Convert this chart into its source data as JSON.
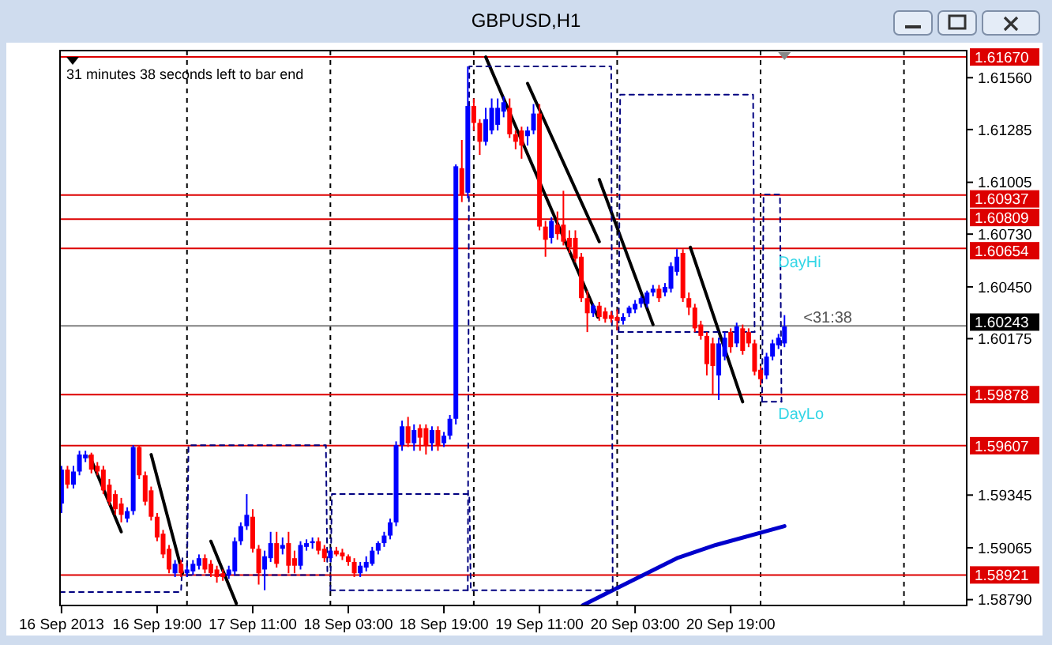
{
  "chart_data": {
    "type": "candlestick",
    "title": "GBPUSD,H1",
    "annotations": [
      "31 minutes 38 seconds left to bar end",
      "DayHi",
      "DayLo",
      "<31:38"
    ],
    "x": [
      "2013-09-16T03:00",
      "2013-09-16T04:00",
      "2013-09-16T05:00",
      "2013-09-16T06:00",
      "2013-09-16T07:00",
      "2013-09-16T08:00",
      "2013-09-16T09:00",
      "2013-09-16T10:00",
      "2013-09-16T11:00",
      "2013-09-16T12:00",
      "2013-09-16T13:00",
      "2013-09-16T14:00",
      "2013-09-16T15:00",
      "2013-09-16T16:00",
      "2013-09-16T17:00",
      "2013-09-16T18:00",
      "2013-09-16T19:00",
      "2013-09-16T20:00",
      "2013-09-16T21:00",
      "2013-09-16T22:00",
      "2013-09-16T23:00",
      "2013-09-17T00:00",
      "2013-09-17T01:00",
      "2013-09-17T02:00",
      "2013-09-17T03:00",
      "2013-09-17T04:00",
      "2013-09-17T05:00",
      "2013-09-17T06:00",
      "2013-09-17T07:00",
      "2013-09-17T08:00",
      "2013-09-17T09:00",
      "2013-09-17T10:00",
      "2013-09-17T11:00",
      "2013-09-17T12:00",
      "2013-09-17T13:00",
      "2013-09-17T14:00",
      "2013-09-17T15:00",
      "2013-09-17T16:00",
      "2013-09-17T17:00",
      "2013-09-17T18:00",
      "2013-09-17T19:00",
      "2013-09-17T20:00",
      "2013-09-17T21:00",
      "2013-09-17T22:00",
      "2013-09-17T23:00",
      "2013-09-18T00:00",
      "2013-09-18T01:00",
      "2013-09-18T02:00",
      "2013-09-18T03:00",
      "2013-09-18T04:00",
      "2013-09-18T05:00",
      "2013-09-18T06:00",
      "2013-09-18T07:00",
      "2013-09-18T08:00",
      "2013-09-18T09:00",
      "2013-09-18T10:00",
      "2013-09-18T11:00",
      "2013-09-18T12:00",
      "2013-09-18T13:00",
      "2013-09-18T14:00",
      "2013-09-18T15:00",
      "2013-09-18T16:00",
      "2013-09-18T17:00",
      "2013-09-18T18:00",
      "2013-09-18T19:00",
      "2013-09-18T20:00",
      "2013-09-18T21:00",
      "2013-09-18T22:00",
      "2013-09-18T23:00",
      "2013-09-19T00:00",
      "2013-09-19T01:00",
      "2013-09-19T02:00",
      "2013-09-19T03:00",
      "2013-09-19T04:00",
      "2013-09-19T05:00",
      "2013-09-19T06:00",
      "2013-09-19T07:00",
      "2013-09-19T08:00",
      "2013-09-19T09:00",
      "2013-09-19T10:00",
      "2013-09-19T11:00",
      "2013-09-19T12:00",
      "2013-09-19T13:00",
      "2013-09-19T14:00",
      "2013-09-19T15:00",
      "2013-09-19T16:00",
      "2013-09-19T17:00",
      "2013-09-19T18:00",
      "2013-09-19T19:00",
      "2013-09-19T20:00",
      "2013-09-19T21:00",
      "2013-09-19T22:00",
      "2013-09-19T23:00",
      "2013-09-20T00:00",
      "2013-09-20T01:00",
      "2013-09-20T02:00",
      "2013-09-20T03:00",
      "2013-09-20T04:00",
      "2013-09-20T05:00",
      "2013-09-20T06:00",
      "2013-09-20T07:00",
      "2013-09-20T08:00",
      "2013-09-20T09:00",
      "2013-09-20T10:00",
      "2013-09-20T11:00",
      "2013-09-20T12:00",
      "2013-09-20T13:00",
      "2013-09-20T14:00",
      "2013-09-20T15:00",
      "2013-09-20T16:00",
      "2013-09-20T17:00",
      "2013-09-20T18:00",
      "2013-09-20T19:00",
      "2013-09-20T20:00",
      "2013-09-20T21:00",
      "2013-09-20T22:00",
      "2013-09-20T23:00",
      "2013-09-21T00:00",
      "2013-09-21T01:00",
      "2013-09-21T02:00",
      "2013-09-21T03:00",
      "2013-09-21T04:00"
    ],
    "ohlc": [
      [
        1.593,
        1.595,
        1.5925,
        1.5948
      ],
      [
        1.5948,
        1.595,
        1.5938,
        1.594
      ],
      [
        1.594,
        1.595,
        1.5938,
        1.5947
      ],
      [
        1.5947,
        1.5958,
        1.5945,
        1.5956
      ],
      [
        1.5954,
        1.5958,
        1.5952,
        1.5956
      ],
      [
        1.5956,
        1.5957,
        1.5946,
        1.5948
      ],
      [
        1.595,
        1.5952,
        1.5945,
        1.5947
      ],
      [
        1.5948,
        1.595,
        1.5935,
        1.5937
      ],
      [
        1.594,
        1.5943,
        1.5929,
        1.5931
      ],
      [
        1.5935,
        1.5937,
        1.5924,
        1.5927
      ],
      [
        1.593,
        1.5933,
        1.592,
        1.5924
      ],
      [
        1.5922,
        1.5928,
        1.592,
        1.5926
      ],
      [
        1.5926,
        1.5961,
        1.5924,
        1.596
      ],
      [
        1.596,
        1.5961,
        1.5943,
        1.5945
      ],
      [
        1.5945,
        1.5947,
        1.5929,
        1.5931
      ],
      [
        1.5937,
        1.5939,
        1.5921,
        1.5923
      ],
      [
        1.5923,
        1.5925,
        1.591,
        1.5912
      ],
      [
        1.5914,
        1.5916,
        1.5901,
        1.5903
      ],
      [
        1.5906,
        1.5908,
        1.5893,
        1.5895
      ],
      [
        1.5893,
        1.59,
        1.5891,
        1.5898
      ],
      [
        1.5898,
        1.59,
        1.5891,
        1.5893
      ],
      [
        1.5893,
        1.5897,
        1.5891,
        1.5895
      ],
      [
        1.5894,
        1.59,
        1.5892,
        1.5898
      ],
      [
        1.5897,
        1.5903,
        1.5895,
        1.5901
      ],
      [
        1.5901,
        1.5903,
        1.5893,
        1.5895
      ],
      [
        1.5898,
        1.59,
        1.5891,
        1.5893
      ],
      [
        1.5895,
        1.5897,
        1.5888,
        1.5891
      ],
      [
        1.5893,
        1.5895,
        1.5889,
        1.5891
      ],
      [
        1.5892,
        1.5897,
        1.589,
        1.5895
      ],
      [
        1.5894,
        1.5912,
        1.5892,
        1.591
      ],
      [
        1.591,
        1.592,
        1.5908,
        1.5918
      ],
      [
        1.5918,
        1.5935,
        1.5916,
        1.5924
      ],
      [
        1.5923,
        1.5927,
        1.5904,
        1.5906
      ],
      [
        1.5906,
        1.5908,
        1.5887,
        1.5893
      ],
      [
        1.5895,
        1.5905,
        1.5884,
        1.5902
      ],
      [
        1.5901,
        1.5915,
        1.5899,
        1.5909
      ],
      [
        1.5909,
        1.5915,
        1.5896,
        1.5898
      ],
      [
        1.5906,
        1.5912,
        1.5903,
        1.5908
      ],
      [
        1.5909,
        1.5915,
        1.5893,
        1.5897
      ],
      [
        1.5901,
        1.5905,
        1.5893,
        1.5897
      ],
      [
        1.5897,
        1.591,
        1.5895,
        1.5908
      ],
      [
        1.5907,
        1.5911,
        1.5905,
        1.5909
      ],
      [
        1.5909,
        1.5912,
        1.5906,
        1.591
      ],
      [
        1.591,
        1.5912,
        1.5903,
        1.5905
      ],
      [
        1.5906,
        1.5908,
        1.5899,
        1.5901
      ],
      [
        1.5901,
        1.5906,
        1.5899,
        1.5905
      ],
      [
        1.5905,
        1.5907,
        1.5902,
        1.5903
      ],
      [
        1.5904,
        1.5906,
        1.59,
        1.5902
      ],
      [
        1.5902,
        1.5903,
        1.5897,
        1.5899
      ],
      [
        1.5899,
        1.5901,
        1.5891,
        1.5893
      ],
      [
        1.5893,
        1.5899,
        1.5891,
        1.5897
      ],
      [
        1.5896,
        1.5902,
        1.5894,
        1.5899
      ],
      [
        1.5898,
        1.5907,
        1.5897,
        1.5905
      ],
      [
        1.5905,
        1.591,
        1.5903,
        1.5909
      ],
      [
        1.5909,
        1.5915,
        1.5907,
        1.5913
      ],
      [
        1.5913,
        1.5922,
        1.5911,
        1.592
      ],
      [
        1.592,
        1.5963,
        1.5918,
        1.5961
      ],
      [
        1.5961,
        1.5974,
        1.5958,
        1.5971
      ],
      [
        1.5971,
        1.5976,
        1.596,
        1.5962
      ],
      [
        1.5962,
        1.5972,
        1.5958,
        1.5969
      ],
      [
        1.597,
        1.5972,
        1.5958,
        1.5965
      ],
      [
        1.597,
        1.5972,
        1.5956,
        1.5961
      ],
      [
        1.5962,
        1.5971,
        1.5958,
        1.5969
      ],
      [
        1.5969,
        1.5971,
        1.5958,
        1.5961
      ],
      [
        1.5962,
        1.5968,
        1.596,
        1.5966
      ],
      [
        1.5966,
        1.5977,
        1.5964,
        1.5975
      ],
      [
        1.5975,
        1.611,
        1.5972,
        1.6109
      ],
      [
        1.6108,
        1.6123,
        1.609,
        1.6094
      ],
      [
        1.6095,
        1.6162,
        1.6092,
        1.6141
      ],
      [
        1.6141,
        1.6145,
        1.6128,
        1.6132
      ],
      [
        1.6132,
        1.6134,
        1.6115,
        1.6122
      ],
      [
        1.6122,
        1.614,
        1.612,
        1.6134
      ],
      [
        1.6128,
        1.6145,
        1.6126,
        1.614
      ],
      [
        1.6131,
        1.6145,
        1.6128,
        1.614
      ],
      [
        1.6138,
        1.6146,
        1.6135,
        1.6143
      ],
      [
        1.614,
        1.6145,
        1.6124,
        1.6126
      ],
      [
        1.6126,
        1.6128,
        1.6118,
        1.6122
      ],
      [
        1.6128,
        1.613,
        1.6113,
        1.612
      ],
      [
        1.6125,
        1.613,
        1.612,
        1.6128
      ],
      [
        1.6128,
        1.6142,
        1.6126,
        1.6137
      ],
      [
        1.6137,
        1.6142,
        1.6075,
        1.6077
      ],
      [
        1.6077,
        1.608,
        1.6061,
        1.607
      ],
      [
        1.6071,
        1.6082,
        1.6068,
        1.608
      ],
      [
        1.6078,
        1.6085,
        1.607,
        1.6073
      ],
      [
        1.6078,
        1.6096,
        1.6067,
        1.6069
      ],
      [
        1.6071,
        1.6075,
        1.6063,
        1.6066
      ],
      [
        1.6071,
        1.6075,
        1.6058,
        1.606
      ],
      [
        1.6061,
        1.6063,
        1.6037,
        1.6039
      ],
      [
        1.6039,
        1.6043,
        1.6021,
        1.6031
      ],
      [
        1.6031,
        1.6036,
        1.6029,
        1.6035
      ],
      [
        1.6035,
        1.6037,
        1.6027,
        1.6029
      ],
      [
        1.6032,
        1.6034,
        1.6026,
        1.6028
      ],
      [
        1.603,
        1.6032,
        1.6026,
        1.6028
      ],
      [
        1.6029,
        1.6033,
        1.6022,
        1.6027
      ],
      [
        1.6027,
        1.6031,
        1.6025,
        1.6029
      ],
      [
        1.6031,
        1.6035,
        1.6029,
        1.6034
      ],
      [
        1.6033,
        1.6038,
        1.6031,
        1.6036
      ],
      [
        1.6036,
        1.604,
        1.6034,
        1.6039
      ],
      [
        1.6036,
        1.6043,
        1.6034,
        1.6042
      ],
      [
        1.6042,
        1.6046,
        1.604,
        1.6044
      ],
      [
        1.6044,
        1.6046,
        1.6037,
        1.6039
      ],
      [
        1.6042,
        1.6047,
        1.604,
        1.6045
      ],
      [
        1.6044,
        1.6058,
        1.6042,
        1.6056
      ],
      [
        1.6053,
        1.6065,
        1.6051,
        1.6061
      ],
      [
        1.6063,
        1.6065,
        1.6037,
        1.6039
      ],
      [
        1.6039,
        1.6042,
        1.603,
        1.6034
      ],
      [
        1.6034,
        1.6036,
        1.6021,
        1.6023
      ],
      [
        1.6025,
        1.6027,
        1.6017,
        1.6019
      ],
      [
        1.6019,
        1.6021,
        1.5998,
        1.6004
      ],
      [
        1.6015,
        1.6018,
        1.5988,
        1.6003
      ],
      [
        1.5998,
        1.6018,
        1.5985,
        1.6015
      ],
      [
        1.6008,
        1.6021,
        1.6006,
        1.6018
      ],
      [
        1.6021,
        1.6023,
        1.601,
        1.6013
      ],
      [
        1.6015,
        1.6026,
        1.6013,
        1.6024
      ],
      [
        1.6023,
        1.6025,
        1.6009,
        1.6011
      ],
      [
        1.6021,
        1.6023,
        1.6013,
        1.6015
      ],
      [
        1.6015,
        1.6017,
        1.5998,
        1.6
      ],
      [
        1.6001,
        1.6003,
        1.5993,
        1.5996
      ],
      [
        1.5998,
        1.601,
        1.5996,
        1.6008
      ],
      [
        1.6008,
        1.6017,
        1.6006,
        1.6015
      ],
      [
        1.6014,
        1.602,
        1.6012,
        1.6018
      ],
      [
        1.6015,
        1.603,
        1.6013,
        1.6024
      ]
    ],
    "colors": [
      "#0000ff",
      "#ff0000",
      "#0000ff",
      "#0000ff",
      "#0000ff",
      "#ff0000",
      "#ff0000",
      "#ff0000",
      "#ff0000",
      "#ff0000",
      "#ff0000",
      "#0000ff",
      "#0000ff",
      "#ff0000",
      "#ff0000",
      "#ff0000",
      "#ff0000",
      "#ff0000",
      "#ff0000",
      "#0000ff",
      "#ff0000",
      "#0000ff",
      "#0000ff",
      "#0000ff",
      "#ff0000",
      "#ff0000",
      "#ff0000",
      "#ff0000",
      "#0000ff",
      "#0000ff",
      "#0000ff",
      "#0000ff",
      "#ff0000",
      "#ff0000",
      "#0000ff",
      "#0000ff",
      "#ff0000",
      "#0000ff",
      "#ff0000",
      "#ff0000",
      "#0000ff",
      "#0000ff",
      "#0000ff",
      "#ff0000",
      "#ff0000",
      "#0000ff",
      "#ff0000",
      "#ff0000",
      "#ff0000",
      "#ff0000",
      "#0000ff",
      "#0000ff",
      "#0000ff",
      "#0000ff",
      "#0000ff",
      "#0000ff",
      "#0000ff",
      "#0000ff",
      "#ff0000",
      "#0000ff",
      "#ff0000",
      "#ff0000",
      "#0000ff",
      "#ff0000",
      "#0000ff",
      "#0000ff",
      "#0000ff",
      "#ff0000",
      "#0000ff",
      "#ff0000",
      "#ff0000",
      "#0000ff",
      "#0000ff",
      "#0000ff",
      "#0000ff",
      "#ff0000",
      "#ff0000",
      "#ff0000",
      "#0000ff",
      "#0000ff",
      "#ff0000",
      "#ff0000",
      "#0000ff",
      "#ff0000",
      "#ff0000",
      "#ff0000",
      "#ff0000",
      "#ff0000",
      "#ff0000",
      "#0000ff",
      "#ff0000",
      "#ff0000",
      "#ff0000",
      "#ff0000",
      "#0000ff",
      "#0000ff",
      "#0000ff",
      "#0000ff",
      "#0000ff",
      "#0000ff",
      "#ff0000",
      "#0000ff",
      "#0000ff",
      "#0000ff",
      "#ff0000",
      "#ff0000",
      "#ff0000",
      "#ff0000",
      "#ff0000",
      "#ff0000",
      "#0000ff",
      "#0000ff",
      "#ff0000",
      "#0000ff",
      "#ff0000",
      "#ff0000",
      "#ff0000",
      "#ff0000",
      "#0000ff",
      "#0000ff",
      "#0000ff",
      "#0000ff"
    ],
    "series": [
      {
        "type": "line",
        "color": "#0000cc",
        "x": [
          "2013-09-19T18:15",
          "2013-09-19T23:15",
          "2013-09-20T10:00",
          "2013-09-20T16:30",
          "2013-09-21T04:00"
        ],
        "values": [
          1.5876,
          1.5884,
          1.5901,
          1.5908,
          1.5918
        ]
      },
      {
        "type": "line",
        "color": "#000000",
        "x": [
          "2013-09-16T07:45",
          "2013-09-16T13:00"
        ],
        "values": [
          1.5955,
          1.5915
        ]
      },
      {
        "type": "line",
        "color": "#000000",
        "x": [
          "2013-09-16T18:00",
          "2013-09-16T23:15"
        ],
        "values": [
          1.5956,
          1.5893
        ]
      },
      {
        "type": "line",
        "color": "#000000",
        "x": [
          "2013-09-17T04:00",
          "2013-09-17T08:15"
        ],
        "values": [
          1.591,
          1.5877
        ]
      },
      {
        "type": "line",
        "color": "#000000",
        "x": [
          "2013-09-19T02:00",
          "2013-09-19T20:45"
        ],
        "values": [
          1.6167,
          1.6029
        ]
      },
      {
        "type": "line",
        "color": "#000000",
        "x": [
          "2013-09-19T09:00",
          "2013-09-19T21:00"
        ],
        "values": [
          1.6153,
          1.6069
        ]
      },
      {
        "type": "line",
        "color": "#000000",
        "x": [
          "2013-09-19T21:00",
          "2013-09-20T06:00"
        ],
        "values": [
          1.6102,
          1.6025
        ]
      },
      {
        "type": "line",
        "color": "#000000",
        "x": [
          "2013-09-20T12:15",
          "2013-09-20T21:00"
        ],
        "values": [
          1.6066,
          1.5984
        ]
      },
      {
        "type": "line",
        "color": "#000080",
        "line_style": "dashed",
        "x": [
          "2013-09-16T02:45",
          "2013-09-16T23:00",
          "2013-09-16T23:15"
        ],
        "values": [
          1.5883,
          1.5883,
          1.5901
        ]
      },
      {
        "type": "line",
        "color": "#000080",
        "line_style": "dashed",
        "x": [
          "2013-09-17T00:00",
          "2013-09-17T00:15",
          "2013-09-17T23:15",
          "2013-09-17T23:30"
        ],
        "values": [
          1.5892,
          1.5961,
          1.5961,
          1.5892
        ]
      },
      {
        "type": "line",
        "color": "#000080",
        "line_style": "dashed",
        "x": [
          "2013-09-17T00:00",
          "2013-09-17T23:30"
        ],
        "values": [
          1.5892,
          1.5892
        ]
      },
      {
        "type": "line",
        "color": "#000080",
        "line_style": "dashed",
        "x": [
          "2013-09-18T00:00",
          "2013-09-18T00:15",
          "2013-09-18T23:15",
          "2013-09-18T23:30"
        ],
        "values": [
          1.5884,
          1.5935,
          1.5935,
          1.5884
        ]
      },
      {
        "type": "line",
        "color": "#000080",
        "line_style": "dashed",
        "x": [
          "2013-09-18T23:00",
          "2013-09-18T23:15",
          "2013-09-19T23:00",
          "2013-09-19T23:15"
        ],
        "values": [
          1.5884,
          1.6162,
          1.6162,
          1.5884
        ]
      },
      {
        "type": "line",
        "color": "#000080",
        "line_style": "dashed",
        "x": [
          "2013-09-18T00:00",
          "2013-09-19T23:15"
        ],
        "values": [
          1.5884,
          1.5884
        ]
      },
      {
        "type": "line",
        "color": "#000080",
        "line_style": "dashed",
        "x": [
          "2013-09-20T00:15",
          "2013-09-20T00:30",
          "2013-09-20T22:45",
          "2013-09-20T23:00"
        ],
        "values": [
          1.6021,
          1.6147,
          1.6147,
          1.6021
        ]
      },
      {
        "type": "line",
        "color": "#000080",
        "line_style": "dashed",
        "x": [
          "2013-09-20T00:15",
          "2013-09-20T23:00"
        ],
        "values": [
          1.6021,
          1.6021
        ]
      },
      {
        "type": "line",
        "color": "#000080",
        "line_style": "dashed",
        "x": [
          "2013-09-21T00:15",
          "2013-09-21T00:30",
          "2013-09-21T03:15",
          "2013-09-21T03:30"
        ],
        "values": [
          1.5984,
          1.6094,
          1.6094,
          1.5984
        ]
      },
      {
        "type": "line",
        "color": "#000080",
        "line_style": "dashed",
        "x": [
          "2013-09-21T00:15",
          "2013-09-21T03:30"
        ],
        "values": [
          1.5984,
          1.5984
        ]
      }
    ],
    "xlim": [
      "2013-09-16T02:45",
      "2013-09-22T10:30"
    ],
    "xticks": [
      {
        "value": "2013-09-16T03:00",
        "label": "16 Sep 2013"
      },
      {
        "value": "2013-09-16T19:00",
        "label": "16 Sep 19:00"
      },
      {
        "value": "2013-09-17T11:00",
        "label": "17 Sep 11:00"
      },
      {
        "value": "2013-09-18T03:00",
        "label": "18 Sep 03:00"
      },
      {
        "value": "2013-09-18T19:00",
        "label": "18 Sep 19:00"
      },
      {
        "value": "2013-09-19T11:00",
        "label": "19 Sep 11:00"
      },
      {
        "value": "2013-09-20T03:00",
        "label": "20 Sep 03:00"
      },
      {
        "value": "2013-09-20T19:00",
        "label": "20 Sep 19:00"
      }
    ],
    "ylim": [
      1.58759,
      1.61704
    ],
    "yticks": [
      {
        "value": 1.5879,
        "label": "1.58790"
      },
      {
        "value": 1.59065,
        "label": "1.59065"
      },
      {
        "value": 1.59345,
        "label": "1.59345"
      },
      {
        "value": 1.60175,
        "label": "1.60175"
      },
      {
        "value": 1.6045,
        "label": "1.60450"
      },
      {
        "value": 1.6073,
        "label": "1.60730"
      },
      {
        "value": 1.61005,
        "label": "1.61005"
      },
      {
        "value": 1.61285,
        "label": "1.61285"
      },
      {
        "value": 1.6156,
        "label": "1.61560"
      }
    ],
    "ref_lines": [
      {
        "axis": "y",
        "value": 1.6167,
        "color": "#dd0000",
        "label": "1.61670"
      },
      {
        "axis": "y",
        "value": 1.60937,
        "color": "#dd0000",
        "label": "1.60937"
      },
      {
        "axis": "y",
        "value": 1.60809,
        "color": "#dd0000",
        "label": "1.60809"
      },
      {
        "axis": "y",
        "value": 1.60654,
        "color": "#dd0000",
        "label": "1.60654"
      },
      {
        "axis": "y",
        "value": 1.60243,
        "color": "#808080",
        "label": "1.60243"
      },
      {
        "axis": "y",
        "value": 1.59878,
        "color": "#dd0000",
        "label": "1.59878"
      },
      {
        "axis": "y",
        "value": 1.59607,
        "color": "#dd0000",
        "label": "1.59607"
      },
      {
        "axis": "y",
        "value": 1.58921,
        "color": "#dd0000",
        "label": "1.58921"
      },
      {
        "axis": "x",
        "value": "2013-09-17T00:00",
        "color": "#000000",
        "line_style": "dashed"
      },
      {
        "axis": "x",
        "value": "2013-09-18T00:00",
        "color": "#000000",
        "line_style": "dashed"
      },
      {
        "axis": "x",
        "value": "2013-09-19T00:00",
        "color": "#000000",
        "line_style": "dashed"
      },
      {
        "axis": "x",
        "value": "2013-09-20T00:00",
        "color": "#000000",
        "line_style": "dashed"
      },
      {
        "axis": "x",
        "value": "2013-09-21T00:00",
        "color": "#000000",
        "line_style": "dashed"
      },
      {
        "axis": "x",
        "value": "2013-09-22T00:00",
        "color": "#000000",
        "line_style": "dashed"
      }
    ],
    "grid": false
  }
}
